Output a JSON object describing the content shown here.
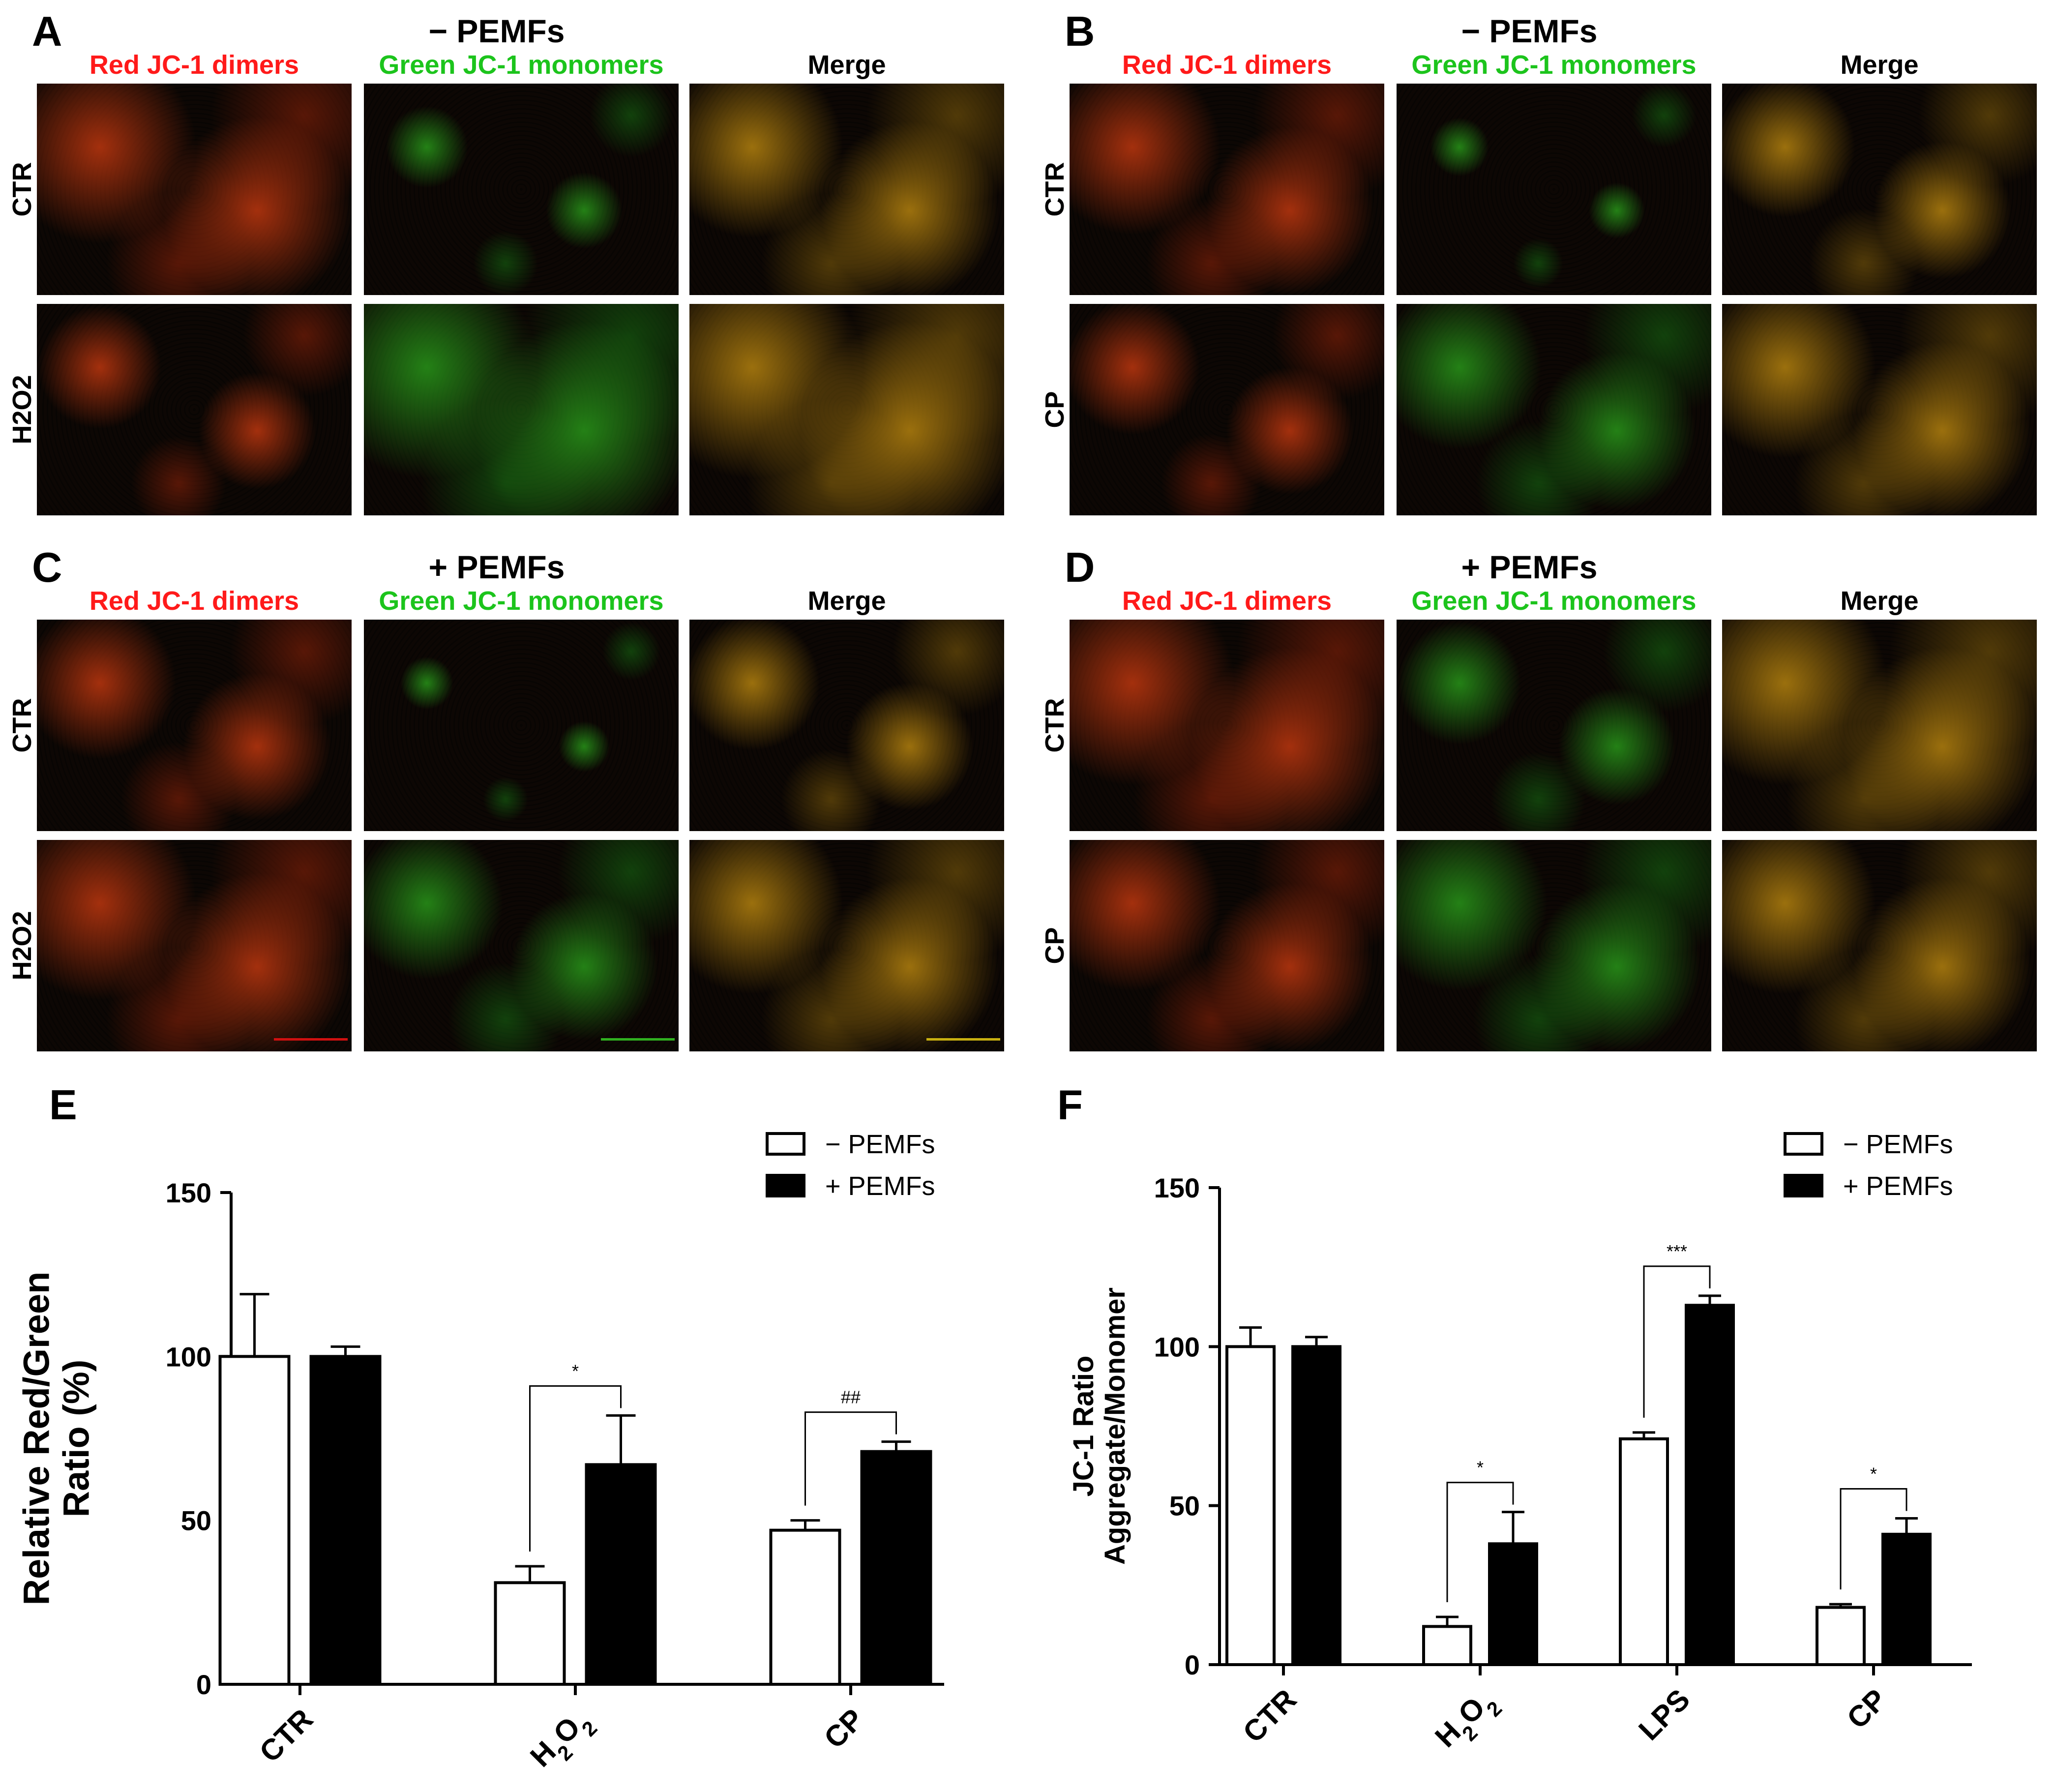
{
  "micrographs": {
    "channel_labels": {
      "red": "Red JC-1 dimers",
      "green": "Green JC-1 monomers",
      "merge": "Merge"
    },
    "colors": {
      "red_label": "#ff1a1a",
      "green_label": "#1cc41c"
    },
    "panels": [
      {
        "letter": "A",
        "condition": "− PEMFs",
        "rows": [
          "CTR",
          "H2O2"
        ]
      },
      {
        "letter": "B",
        "condition": "− PEMFs",
        "rows": [
          "CTR",
          "CP"
        ]
      },
      {
        "letter": "C",
        "condition": "+ PEMFs",
        "rows": [
          "CTR",
          "H2O2"
        ]
      },
      {
        "letter": "D",
        "condition": "+ PEMFs",
        "rows": [
          "CTR",
          "CP"
        ]
      }
    ]
  },
  "chart_data": [
    {
      "panel": "E",
      "type": "bar",
      "categories": [
        "CTR",
        "H2O2",
        "CP"
      ],
      "ylabel": "Relative Red/Green Ratio (%)",
      "ylabel_lines": [
        "Relative Red/Green",
        "Ratio (%)"
      ],
      "ylim": [
        0,
        150
      ],
      "yticks": [
        0,
        50,
        100,
        150
      ],
      "legend_position": "top-right",
      "series": [
        {
          "name": "− PEMFs",
          "fill": "#ffffff",
          "values": [
            100,
            31,
            47
          ],
          "errors": [
            19,
            5,
            3
          ]
        },
        {
          "name": "+ PEMFs",
          "fill": "#000000",
          "values": [
            100,
            67,
            71
          ],
          "errors": [
            3,
            15,
            3
          ]
        }
      ],
      "annotations": [
        {
          "category": "H2O2",
          "label": "*"
        },
        {
          "category": "CP",
          "label": "##"
        }
      ]
    },
    {
      "panel": "F",
      "type": "bar",
      "categories": [
        "CTR",
        "H2O2",
        "LPS",
        "CP"
      ],
      "ylabel": "JC-1 Ratio Aggregate/Monomer",
      "ylabel_lines": [
        "JC-1 Ratio",
        "Aggregate/Monomer"
      ],
      "ylim": [
        0,
        150
      ],
      "yticks": [
        0,
        50,
        100,
        150
      ],
      "legend_position": "top-right",
      "series": [
        {
          "name": "− PEMFs",
          "fill": "#ffffff",
          "values": [
            100,
            12,
            71,
            18
          ],
          "errors": [
            6,
            3,
            2,
            1
          ]
        },
        {
          "name": "+ PEMFs",
          "fill": "#000000",
          "values": [
            100,
            38,
            113,
            41
          ],
          "errors": [
            3,
            10,
            3,
            5
          ]
        }
      ],
      "annotations": [
        {
          "category": "H2O2",
          "label": "*"
        },
        {
          "category": "LPS",
          "label": "***"
        },
        {
          "category": "CP",
          "label": "*"
        }
      ]
    }
  ]
}
